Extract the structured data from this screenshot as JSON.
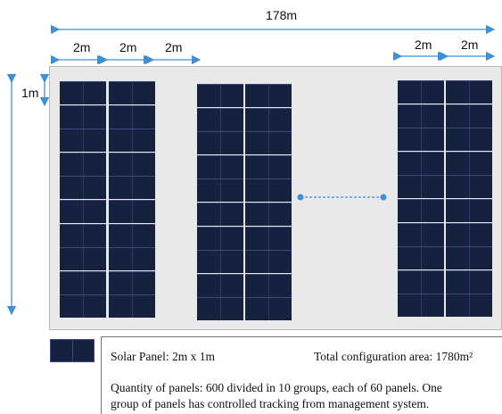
{
  "dimensions": {
    "total_width": "178m",
    "panel_width_left": "2m",
    "panel_width_left2": "2m",
    "gap_width": "2m",
    "panel_width_right": "2m",
    "panel_width_right2": "2m",
    "panel_height": "1m"
  },
  "legend": {
    "panel_size": "Solar Panel: 2m x 1m",
    "total_area": "Total configuration area: 1780m²",
    "quantity_line1": "Quantity of panels: 600 divided in 10 groups, each of 60 panels. One",
    "quantity_line2": "group of panels has controlled tracking from management system."
  },
  "colors": {
    "panel": "#16213f",
    "arrow": "#3d8fd6",
    "background_area": "#e9e9e9"
  }
}
